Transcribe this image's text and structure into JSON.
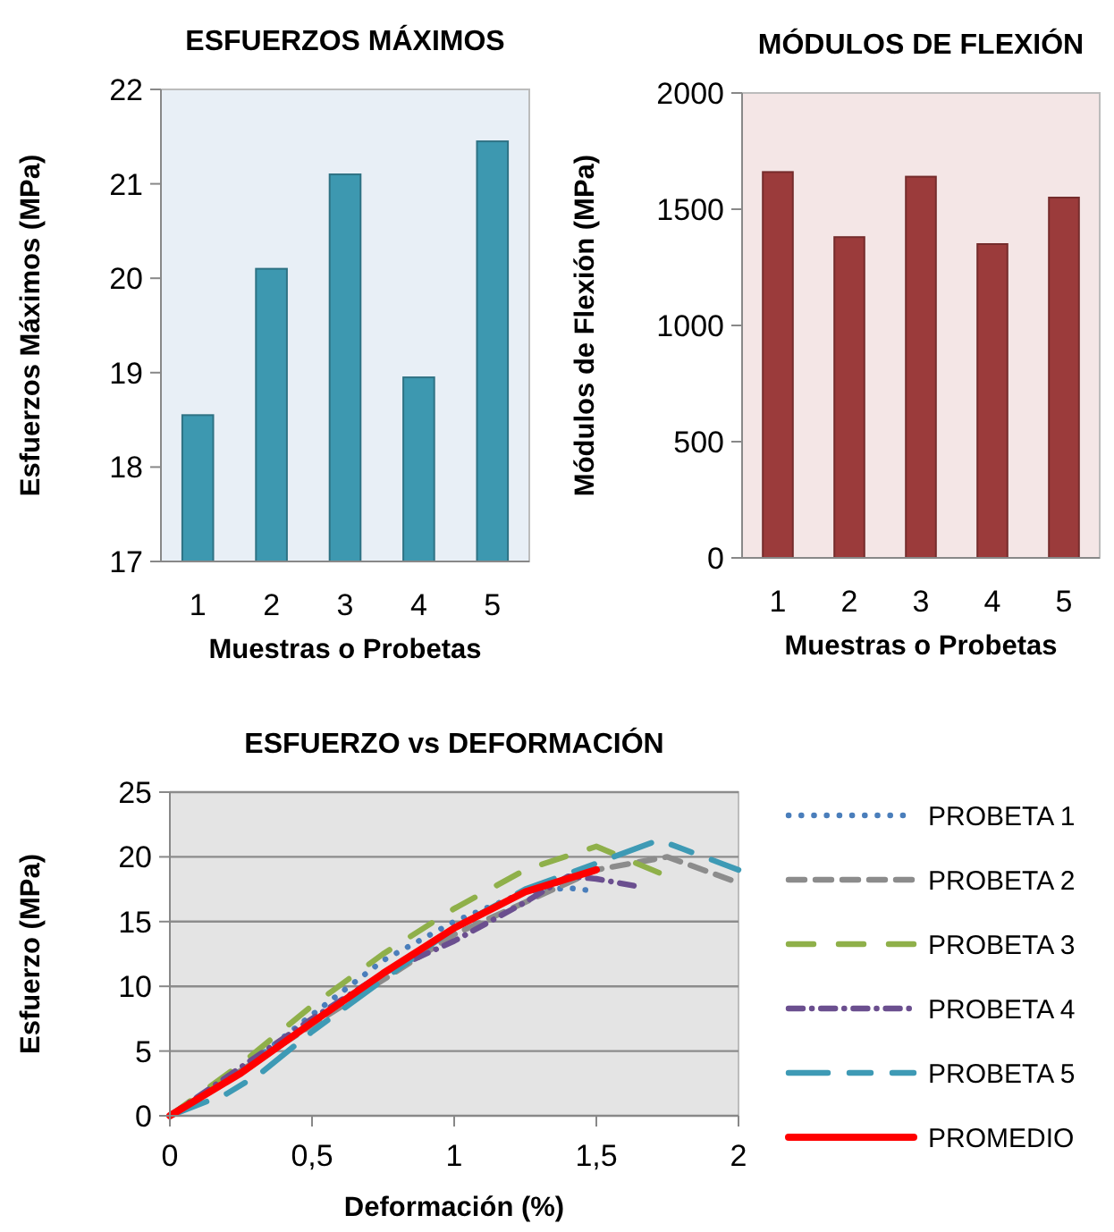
{
  "chart_data": [
    {
      "type": "bar",
      "title": "ESFUERZOS MÁXIMOS",
      "xlabel": "Muestras o Probetas",
      "ylabel": "Esfuerzos Máximos (MPa)",
      "categories": [
        "1",
        "2",
        "3",
        "4",
        "5"
      ],
      "values": [
        18.55,
        20.1,
        21.1,
        18.95,
        21.45
      ],
      "color": "#3d98b0",
      "ylim": [
        17,
        22
      ],
      "yticks": [
        17,
        18,
        19,
        20,
        21,
        22
      ],
      "grid": false,
      "legend": false
    },
    {
      "type": "bar",
      "title": "MÓDULOS DE FLEXIÓN",
      "xlabel": "Muestras o Probetas",
      "ylabel": "Módulos de Flexión (MPa)",
      "categories": [
        "1",
        "2",
        "3",
        "4",
        "5"
      ],
      "values": [
        1660,
        1380,
        1640,
        1350,
        1550
      ],
      "color": "#9b3b3b",
      "ylim": [
        0,
        2000
      ],
      "yticks": [
        0,
        500,
        1000,
        1500,
        2000
      ],
      "grid": false,
      "legend": false
    },
    {
      "type": "line",
      "title": "ESFUERZO vs DEFORMACIÓN",
      "xlabel": "Deformación (%)",
      "ylabel": "Esfuerzo (MPa)",
      "xlim": [
        0,
        2
      ],
      "xticks": [
        0,
        {
          "value": 0.5,
          "label": "0,5"
        },
        1,
        {
          "value": 1.5,
          "label": "1,5"
        },
        2
      ],
      "ylim": [
        0,
        25
      ],
      "yticks": [
        0,
        5,
        10,
        15,
        20,
        25
      ],
      "grid": "y",
      "legend": "right",
      "series": [
        {
          "name": "PROBETA 1",
          "color": "#4a7ebb",
          "line_style": "dotted",
          "x": [
            0,
            0.25,
            0.5,
            0.75,
            1,
            1.25,
            1.4,
            1.48
          ],
          "values": [
            0,
            3.5,
            7.8,
            12,
            15,
            17.3,
            17.6,
            17.4
          ]
        },
        {
          "name": "PROBETA 2",
          "color": "#8c8c8c",
          "line_style": "dashed",
          "x": [
            0,
            0.5,
            1,
            1.25,
            1.5,
            1.75,
            2
          ],
          "values": [
            0,
            7,
            14,
            16.5,
            19,
            20,
            18
          ]
        },
        {
          "name": "PROBETA 3",
          "color": "#8fb04a",
          "line_style": "dashed",
          "x": [
            0,
            0.25,
            0.5,
            0.75,
            1,
            1.25,
            1.5,
            1.75
          ],
          "values": [
            0,
            4,
            8.5,
            12.5,
            16,
            19,
            20.8,
            18.5
          ]
        },
        {
          "name": "PROBETA 4",
          "color": "#6b4f8f",
          "line_style": "dashed",
          "x": [
            0,
            0.5,
            0.75,
            1,
            1.25,
            1.4,
            1.5,
            1.65
          ],
          "values": [
            0,
            7.5,
            11,
            13.5,
            16.5,
            18.5,
            18.3,
            17.7
          ]
        },
        {
          "name": "PROBETA 5",
          "color": "#3e9ab5",
          "line_style": "dashed",
          "x": [
            0,
            0.2,
            0.32,
            0.5,
            0.75,
            1,
            1.25,
            1.5,
            1.72,
            2
          ],
          "values": [
            0,
            1.7,
            3.3,
            6.5,
            10.5,
            14.5,
            17.5,
            19.5,
            21.3,
            19
          ]
        },
        {
          "name": "PROMEDIO",
          "color": "#ff0000",
          "line_style": "solid",
          "x": [
            0,
            0.25,
            0.5,
            0.75,
            1,
            1.25,
            1.5
          ],
          "values": [
            0,
            3.3,
            7.2,
            11,
            14.5,
            17.3,
            19
          ]
        }
      ]
    }
  ]
}
